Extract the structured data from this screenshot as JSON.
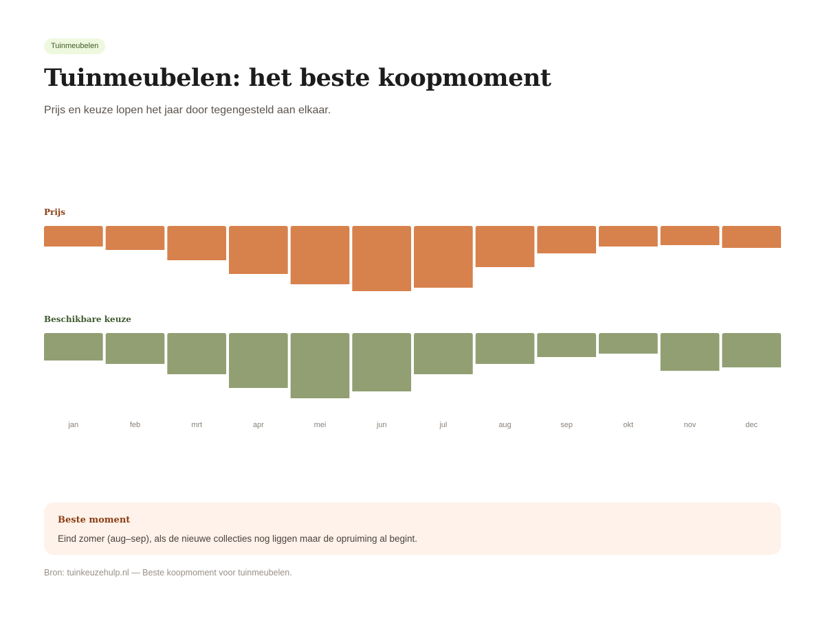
{
  "badge": "Tuinmeubelen",
  "title": "Tuinmeubelen: het beste koopmoment",
  "subtitle": "Prijs en keuze lopen het jaar door tegengesteld aan elkaar.",
  "chart_data": {
    "type": "bar",
    "categories": [
      "jan",
      "feb",
      "mrt",
      "apr",
      "mei",
      "jun",
      "jul",
      "aug",
      "sep",
      "okt",
      "nov",
      "dec"
    ],
    "series": [
      {
        "name": "Prijs",
        "color": "#d7814c",
        "values": [
          30,
          35,
          50,
          70,
          85,
          95,
          90,
          60,
          40,
          30,
          28,
          32
        ]
      },
      {
        "name": "Beschikbare keuze",
        "color": "#919f73",
        "values": [
          40,
          45,
          60,
          80,
          95,
          85,
          60,
          45,
          35,
          30,
          55,
          50
        ]
      }
    ],
    "ylim": [
      0,
      100
    ],
    "grid": false,
    "legend": "none"
  },
  "callout": {
    "title": "Beste moment",
    "text": "Eind zomer (aug–sep), als de nieuwe collecties nog liggen maar de opruiming al begint."
  },
  "source": "Bron: tuinkeuzehulp.nl — Beste koopmoment voor tuinmeubelen.",
  "colors": {
    "price": "#d7814c",
    "choice": "#919f73",
    "accent_text": "#8b3e15",
    "callout_bg": "#fef2ea",
    "badge_bg": "#eef8df"
  }
}
